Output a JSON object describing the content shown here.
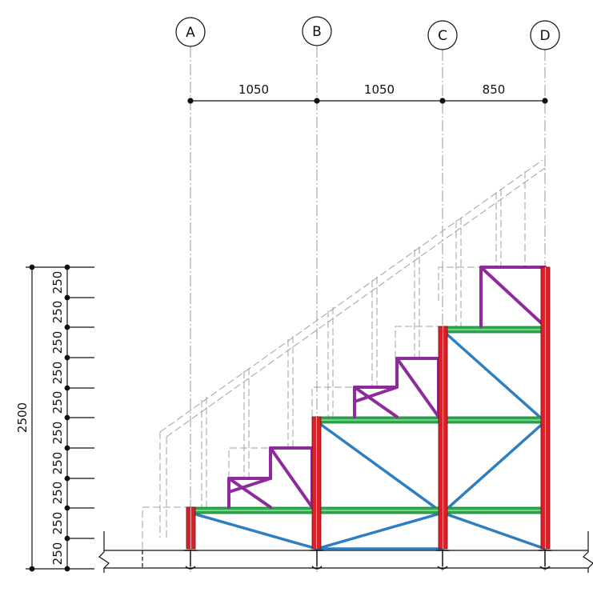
{
  "grid_axes": [
    {
      "label": "A"
    },
    {
      "label": "B"
    },
    {
      "label": "C"
    },
    {
      "label": "D"
    }
  ],
  "horizontal_dimensions": [
    "1050",
    "1050",
    "850"
  ],
  "vertical_dimensions": [
    "250",
    "250",
    "250",
    "250",
    "250",
    "250",
    "250",
    "250",
    "250",
    "250"
  ],
  "total_height_label": "2500",
  "colors": {
    "column": "#d8222a",
    "beam": "#2aa84a",
    "brace": "#2d7fc1",
    "step_frame": "#8e2a9c",
    "hidden_outline": "#9a9a9a",
    "line": "#111111"
  }
}
